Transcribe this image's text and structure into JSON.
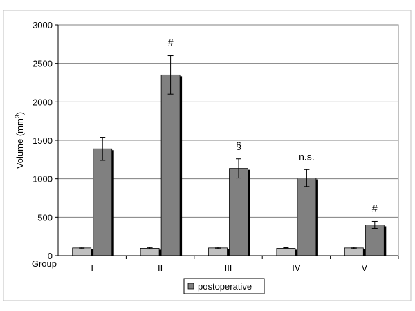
{
  "chart_data": {
    "type": "bar",
    "categories": [
      "I",
      "II",
      "III",
      "IV",
      "V"
    ],
    "x_axis_label": "Group",
    "ylabel": "Volume (mm",
    "ylabel_superscript": "3",
    "ylabel_close": ")",
    "ylim": [
      0,
      3000
    ],
    "yticks": [
      0,
      500,
      1000,
      1500,
      2000,
      2500,
      3000
    ],
    "grid": true,
    "legend_position": "bottom-center",
    "series": [
      {
        "color": "#c0c0c0",
        "values": [
          100,
          95,
          100,
          95,
          100
        ],
        "errors": [
          10,
          10,
          10,
          8,
          10
        ]
      },
      {
        "name": "postoperative",
        "color": "#808080",
        "values": [
          1390,
          2350,
          1135,
          1010,
          400
        ],
        "errors": [
          150,
          250,
          125,
          110,
          45
        ]
      }
    ],
    "annotations": [
      "",
      "#",
      "§",
      "n.s.",
      "#"
    ]
  }
}
